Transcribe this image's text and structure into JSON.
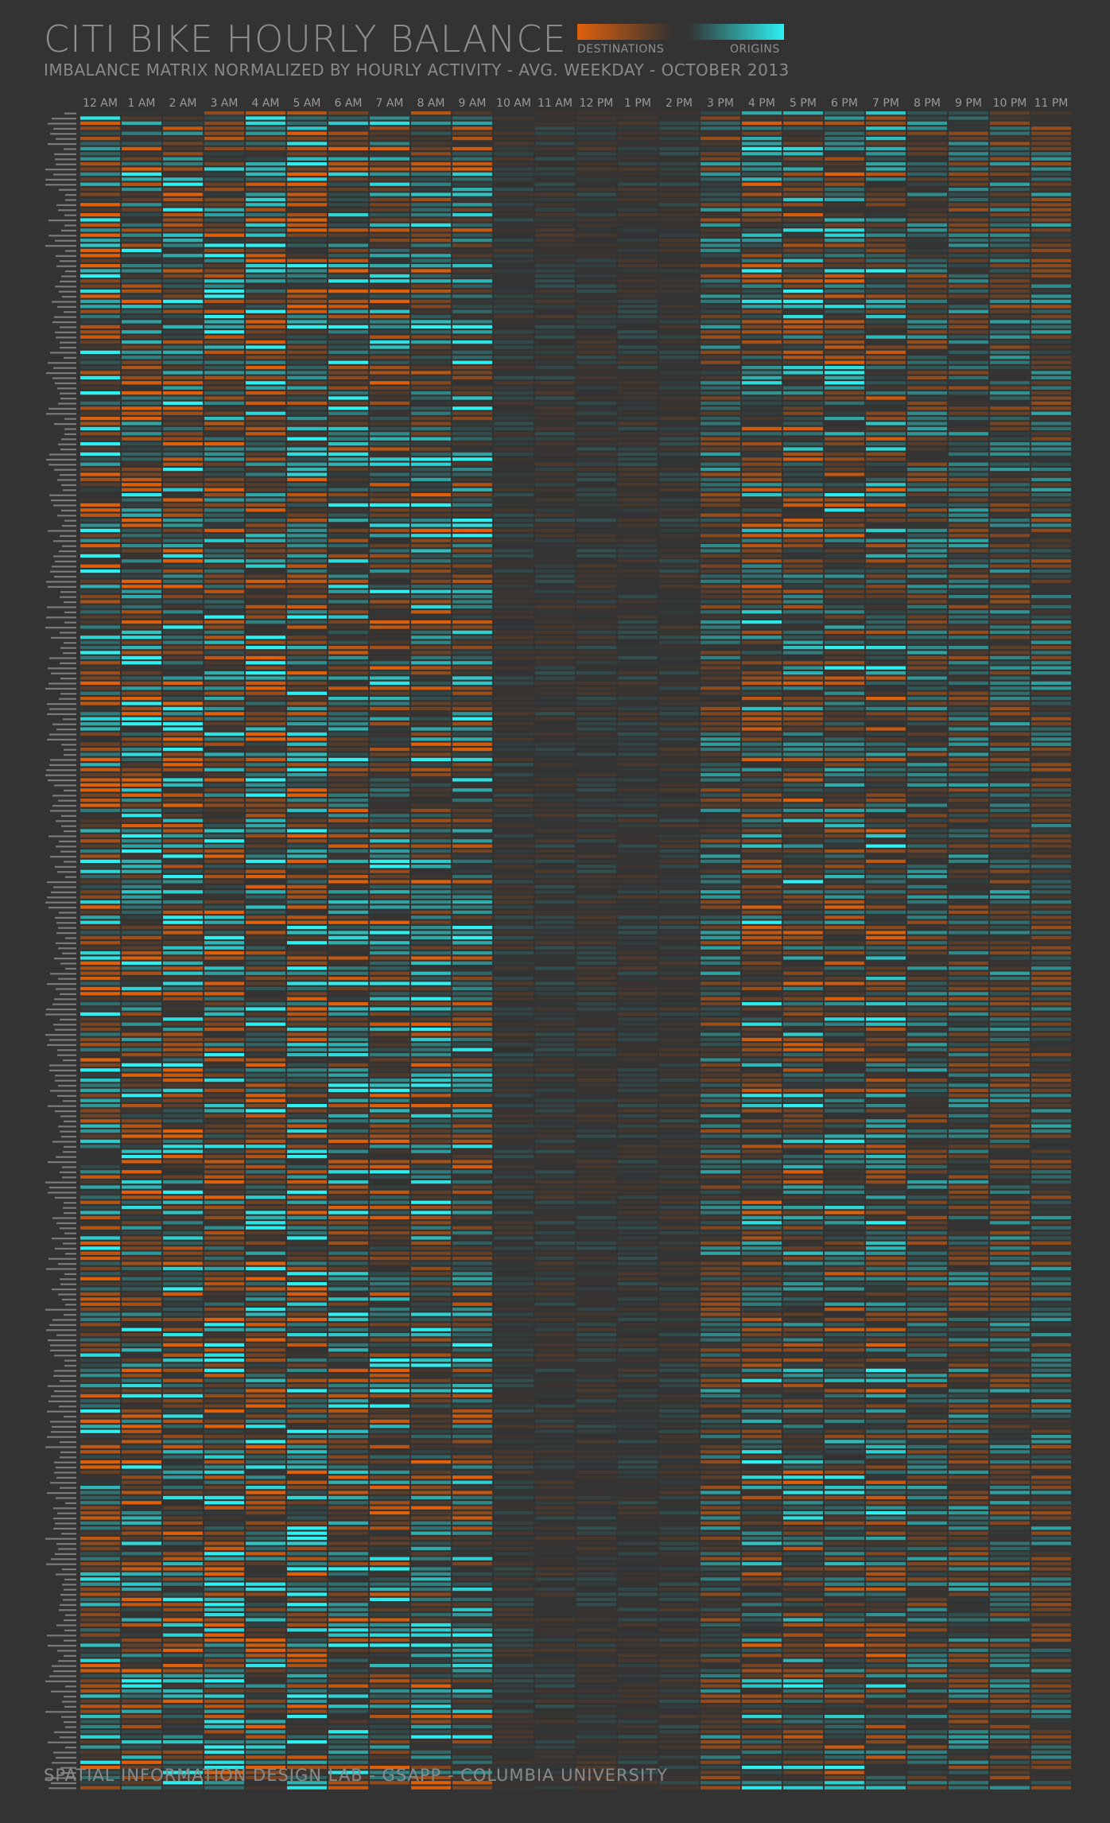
{
  "chart_data": {
    "type": "heatmap",
    "title": "CITI BIKE HOURLY BALANCE",
    "subtitle": "IMBALANCE MATRIX NORMALIZED BY HOURLY ACTIVITY - AVG. WEEKDAY - OCTOBER 2013",
    "legend": {
      "negative_label": "DESTINATIONS",
      "positive_label": "ORIGINS",
      "negative_color": "#e0600a",
      "positive_color": "#2ef0f0",
      "neutral_color": "#333333",
      "placement": "top-right"
    },
    "x_categories": [
      "12 AM",
      "1 AM",
      "2 AM",
      "3 AM",
      "4 AM",
      "5 AM",
      "6 AM",
      "7 AM",
      "8 AM",
      "9 AM",
      "10 AM",
      "11 AM",
      "12 PM",
      "1 PM",
      "2 PM",
      "3 PM",
      "4 PM",
      "5 PM",
      "6 PM",
      "7 PM",
      "8 PM",
      "9 PM",
      "10 PM",
      "11 PM"
    ],
    "row_count": 330,
    "value_range": [
      -1,
      1
    ],
    "row_labels_legible": false
  },
  "footer": "SPATIAL INFORMATION DESIGN LAB - GSAPP - COLUMBIA UNIVERSITY"
}
